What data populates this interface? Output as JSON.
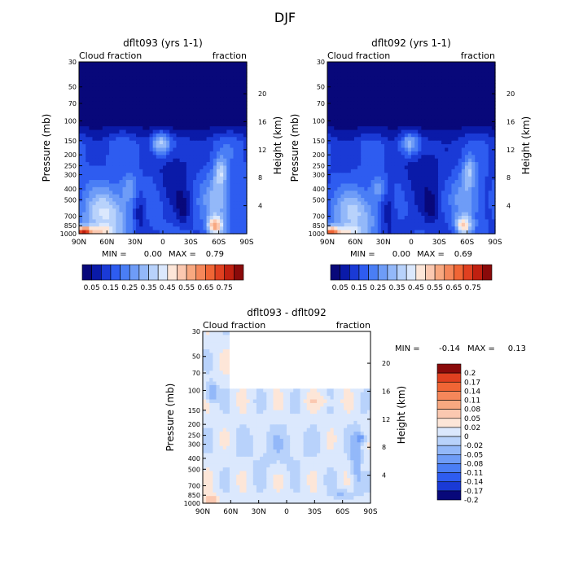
{
  "figure": {
    "season_title": "DJF",
    "colors": {
      "full": [
        "#08087a",
        "#0a1aa8",
        "#1a3ad6",
        "#2e5cf0",
        "#4a7ef5",
        "#6e9cf7",
        "#93b8f9",
        "#b8d2fb",
        "#dbe8fd",
        "#fde6d8",
        "#fbc8b0",
        "#f8a880",
        "#f5875a",
        "#f06535",
        "#e04020",
        "#c02010",
        "#8a0a0a"
      ],
      "diff": [
        "#08087a",
        "#1a3ad6",
        "#2e5cf0",
        "#4a7ef5",
        "#6e9cf7",
        "#93b8f9",
        "#b8d2fb",
        "#dbe8fd",
        "#fde6d8",
        "#fbc8b0",
        "#f8a880",
        "#f5875a",
        "#f06535",
        "#e04020",
        "#8a0a0a"
      ]
    }
  },
  "chart_data": [
    {
      "type": "heatmap",
      "title": "dflt093 (yrs 1-1)",
      "left_label": "Cloud fraction",
      "right_label": "fraction",
      "xlabel": "",
      "ylabel": "Pressure (mb)",
      "y2label": "Height (km)",
      "x_ticks": [
        "90N",
        "60N",
        "30N",
        "0",
        "30S",
        "60S",
        "90S"
      ],
      "x_values": [
        90,
        60,
        30,
        0,
        -30,
        -60,
        -90
      ],
      "y_ticks": [
        "30",
        "50",
        "70",
        "100",
        "150",
        "200",
        "250",
        "300",
        "400",
        "500",
        "700",
        "850",
        "1000"
      ],
      "y_values": [
        30,
        50,
        70,
        100,
        150,
        200,
        250,
        300,
        400,
        500,
        700,
        850,
        1000
      ],
      "y2_ticks": [
        "20",
        "16",
        "12",
        "8",
        "4"
      ],
      "y2_values": [
        20,
        16,
        12,
        8,
        4
      ],
      "stats": {
        "min_label": "MIN =",
        "min": "0.00",
        "max_label": "MAX =",
        "max": "0.79"
      },
      "colorbar_labels": [
        "0.05",
        "0.15",
        "0.25",
        "0.35",
        "0.45",
        "0.55",
        "0.65",
        "0.75"
      ],
      "colorbar_levels": [
        0.05,
        0.1,
        0.15,
        0.2,
        0.25,
        0.3,
        0.35,
        0.4,
        0.45,
        0.5,
        0.55,
        0.6,
        0.65,
        0.7,
        0.75
      ],
      "max_value": 0.79
    },
    {
      "type": "heatmap",
      "title": "dflt092 (yrs 1-1)",
      "left_label": "Cloud fraction",
      "right_label": "fraction",
      "xlabel": "",
      "ylabel": "Pressure (mb)",
      "y2label": "Height (km)",
      "x_ticks": [
        "90N",
        "60N",
        "30N",
        "0",
        "30S",
        "60S",
        "90S"
      ],
      "x_values": [
        90,
        60,
        30,
        0,
        -30,
        -60,
        -90
      ],
      "y_ticks": [
        "30",
        "50",
        "70",
        "100",
        "150",
        "200",
        "250",
        "300",
        "400",
        "500",
        "700",
        "850",
        "1000"
      ],
      "y_values": [
        30,
        50,
        70,
        100,
        150,
        200,
        250,
        300,
        400,
        500,
        700,
        850,
        1000
      ],
      "y2_ticks": [
        "20",
        "16",
        "12",
        "8",
        "4"
      ],
      "y2_values": [
        20,
        16,
        12,
        8,
        4
      ],
      "stats": {
        "min_label": "MIN =",
        "min": "0.00",
        "max_label": "MAX =",
        "max": "0.69"
      },
      "colorbar_labels": [
        "0.05",
        "0.15",
        "0.25",
        "0.35",
        "0.45",
        "0.55",
        "0.65",
        "0.75"
      ],
      "colorbar_levels": [
        0.05,
        0.1,
        0.15,
        0.2,
        0.25,
        0.3,
        0.35,
        0.4,
        0.45,
        0.5,
        0.55,
        0.6,
        0.65,
        0.7,
        0.75
      ],
      "max_value": 0.69
    },
    {
      "type": "heatmap",
      "title": "dflt093 - dflt092",
      "left_label": "Cloud fraction",
      "right_label": "fraction",
      "xlabel": "",
      "ylabel": "Pressure (mb)",
      "y2label": "Height (km)",
      "x_ticks": [
        "90N",
        "60N",
        "30N",
        "0",
        "30S",
        "60S",
        "90S"
      ],
      "x_values": [
        90,
        60,
        30,
        0,
        -30,
        -60,
        -90
      ],
      "y_ticks": [
        "30",
        "50",
        "70",
        "100",
        "150",
        "200",
        "250",
        "300",
        "400",
        "500",
        "700",
        "850",
        "1000"
      ],
      "y_values": [
        30,
        50,
        70,
        100,
        150,
        200,
        250,
        300,
        400,
        500,
        700,
        850,
        1000
      ],
      "y2_ticks": [
        "20",
        "16",
        "12",
        "8",
        "4"
      ],
      "y2_values": [
        20,
        16,
        12,
        8,
        4
      ],
      "stats": {
        "min_label": "MIN =",
        "min": "-0.14",
        "max_label": "MAX =",
        "max": "0.13"
      },
      "colorbar_labels": [
        "0.2",
        "0.17",
        "0.14",
        "0.11",
        "0.08",
        "0.05",
        "0.02",
        "0",
        "-0.02",
        "-0.05",
        "-0.08",
        "-0.11",
        "-0.14",
        "-0.17",
        "-0.2"
      ],
      "colorbar_levels": [
        0.2,
        0.17,
        0.14,
        0.11,
        0.08,
        0.05,
        0.02,
        0,
        -0.02,
        -0.05,
        -0.08,
        -0.11,
        -0.14,
        -0.17,
        -0.2
      ]
    }
  ]
}
